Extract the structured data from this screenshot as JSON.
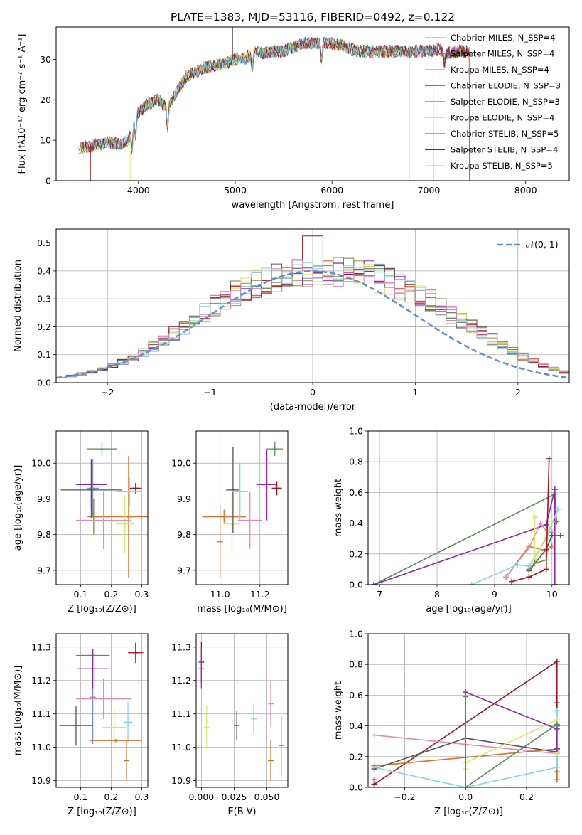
{
  "figure": {
    "title": "PLATE=1383, MJD=53116, FIBERID=0492, z=0.122"
  },
  "colors": {
    "chabrier_miles": "#7f8fc8",
    "salpeter_miles": "#8b8b3a",
    "kroupa_miles": "#d2722b",
    "chabrier_elodie": "#5a8a5a",
    "salpeter_elodie": "#8e2ab0",
    "kroupa_elodie": "#d9e86a",
    "chabrier_stelib": "#555555",
    "salpeter_stelib": "#a3151b",
    "kroupa_stelib": "#80d8e0",
    "pink": "#e58ab8",
    "normal_curve": "#5b8fd6"
  },
  "chart_data": [
    {
      "id": "spectrum",
      "type": "line",
      "title": "PLATE=1383, MJD=53116, FIBERID=0492, z=0.122",
      "xlabel": "wavelength [Angstrom, rest frame]",
      "ylabel": "Flux [fλ10⁻¹⁷ erg cm⁻² s⁻¹ A⁻¹]",
      "xlim": [
        3150,
        8450
      ],
      "ylim": [
        0,
        38
      ],
      "xticks": [
        "4000",
        "5000",
        "6000",
        "7000",
        "8000"
      ],
      "yticks": [
        "0",
        "10",
        "20",
        "30"
      ],
      "grid": false,
      "legend_position": "right",
      "series": [
        {
          "name": "Chabrier MILES, N_SSP=4",
          "color_key": "chabrier_miles"
        },
        {
          "name": "Salpeter MILES, N_SSP=4",
          "color_key": "salpeter_miles"
        },
        {
          "name": "Kroupa MILES, N_SSP=4",
          "color_key": "kroupa_miles"
        },
        {
          "name": "Chabrier ELODIE, N_SSP=3",
          "color_key": "chabrier_elodie"
        },
        {
          "name": "Salpeter ELODIE, N_SSP=3",
          "color_key": "salpeter_elodie"
        },
        {
          "name": "Kroupa ELODIE, N_SSP=4",
          "color_key": "kroupa_elodie"
        },
        {
          "name": "Chabrier STELIB, N_SSP=5",
          "color_key": "chabrier_stelib"
        },
        {
          "name": "Salpeter STELIB, N_SSP=4",
          "color_key": "salpeter_stelib"
        },
        {
          "name": "Kroupa STELIB, N_SSP=5",
          "color_key": "kroupa_stelib"
        }
      ],
      "continuum": {
        "x": [
          3380,
          3500,
          3600,
          3700,
          3800,
          3900,
          3950,
          4000,
          4100,
          4200,
          4300,
          4400,
          4500,
          4600,
          4700,
          4800,
          4900,
          5000,
          5100,
          5200,
          5300,
          5400,
          5500,
          5600,
          5700,
          5800,
          5900,
          6000,
          6100,
          6200,
          6300,
          6400,
          6500,
          6600,
          6700,
          6800,
          6900,
          7000,
          7100,
          7200,
          7300,
          7400
        ],
        "y": [
          8,
          8.5,
          9,
          9.5,
          9,
          10,
          15,
          17,
          19,
          20,
          18,
          22,
          26,
          27,
          28,
          28.5,
          29,
          30,
          30,
          32,
          31.5,
          32,
          32,
          33,
          34,
          34,
          34,
          34,
          33.5,
          32.5,
          32,
          32,
          32,
          32,
          32,
          32,
          32,
          32,
          32.5,
          31.5,
          32,
          32
        ]
      },
      "spectrum_end": {
        "kroupa_stelib": 7050,
        "kroupa_elodie": 6800,
        "salpeter_stelib": 7420
      },
      "absorption_features": [
        {
          "x": 3935,
          "depth": 6
        },
        {
          "x": 3970,
          "depth": 5
        },
        {
          "x": 4300,
          "depth": 5
        },
        {
          "x": 5175,
          "depth": 4
        },
        {
          "x": 5890,
          "depth": 4
        },
        {
          "x": 7160,
          "depth": 3
        }
      ]
    },
    {
      "id": "residual_histogram",
      "type": "histogram",
      "xlabel": "(data-model)/error",
      "ylabel": "Normed distribution",
      "xlim": [
        -2.5,
        2.5
      ],
      "ylim": [
        0,
        0.55
      ],
      "xticks": [
        "−2",
        "−1",
        "0",
        "1",
        "2"
      ],
      "yticks": [
        "0.0",
        "0.1",
        "0.2",
        "0.3",
        "0.4",
        "0.5"
      ],
      "grid": true,
      "legend_position": "upper right",
      "legend": "𝒩(0, 1)",
      "bin_width": 0.1,
      "profile": [
        0.018,
        0.024,
        0.031,
        0.039,
        0.049,
        0.061,
        0.075,
        0.091,
        0.109,
        0.13,
        0.152,
        0.176,
        0.2,
        0.226,
        0.251,
        0.276,
        0.299,
        0.32,
        0.338,
        0.353,
        0.365,
        0.375,
        0.383,
        0.39,
        0.395,
        0.398,
        0.399,
        0.397,
        0.394,
        0.39,
        0.383,
        0.373,
        0.361,
        0.347,
        0.331,
        0.313,
        0.293,
        0.271,
        0.248,
        0.225,
        0.201,
        0.178,
        0.155,
        0.133,
        0.113,
        0.094,
        0.077,
        0.062,
        0.049,
        0.038
      ]
    },
    {
      "id": "age_vs_Z",
      "type": "errorbar",
      "xlabel": "Z [log₁₀(Z/Z⊙)]",
      "ylabel": "age  [log₁₀(age/yr)]",
      "xlim": [
        0.02,
        0.32
      ],
      "ylim": [
        9.66,
        10.09
      ],
      "xticks": [
        "0.1",
        "0.2",
        "0.3"
      ],
      "yticks": [
        "9.7",
        "9.8",
        "9.9",
        "10.0"
      ],
      "grid": true,
      "points": [
        {
          "x": 0.14,
          "y": 9.93,
          "xerr": 0.02,
          "yerr": 0.08,
          "color_key": "chabrier_miles"
        },
        {
          "x": 0.143,
          "y": 9.85,
          "xerr": 0.02,
          "yerr": 0.05,
          "color_key": "salpeter_miles"
        },
        {
          "x": 0.257,
          "y": 9.85,
          "xerr": 0.11,
          "yerr": 0.17,
          "color_key": "kroupa_miles"
        },
        {
          "x": 0.17,
          "y": 10.04,
          "xerr": 0.05,
          "yerr": 0.02,
          "color_key": "chabrier_elodie"
        },
        {
          "x": 0.135,
          "y": 9.94,
          "xerr": 0.05,
          "yerr": 0.07,
          "color_key": "salpeter_elodie"
        },
        {
          "x": 0.245,
          "y": 9.83,
          "xerr": 0.03,
          "yerr": 0.08,
          "color_key": "kroupa_elodie"
        },
        {
          "x": 0.135,
          "y": 9.925,
          "xerr": 0.1,
          "yerr": 0.08,
          "color_key": "chabrier_stelib"
        },
        {
          "x": 0.28,
          "y": 9.93,
          "xerr": 0.02,
          "yerr": 0.015,
          "color_key": "salpeter_stelib"
        },
        {
          "x": 0.26,
          "y": 9.92,
          "xerr": 0.04,
          "yerr": 0.04,
          "color_key": "kroupa_stelib"
        },
        {
          "x": 0.175,
          "y": 9.84,
          "xerr": 0.09,
          "yerr": 0.08,
          "color_key": "pink"
        }
      ]
    },
    {
      "id": "age_vs_mass",
      "type": "errorbar",
      "xlabel": "mass [log₁₀(M/M⊙)]",
      "ylabel": "",
      "xlim": [
        10.88,
        11.34
      ],
      "ylim": [
        9.66,
        10.09
      ],
      "xticks": [
        "11.0",
        "11.2"
      ],
      "yticks": [
        "9.7",
        "9.8",
        "9.9",
        "10.0"
      ],
      "grid": true,
      "points": [
        {
          "x": 11.02,
          "y": 9.85,
          "xerr": 0.11,
          "yerr": 0.02,
          "color_key": "kroupa_miles"
        },
        {
          "x": 11.275,
          "y": 10.04,
          "xerr": 0.04,
          "yerr": 0.02,
          "color_key": "chabrier_elodie"
        },
        {
          "x": 11.235,
          "y": 9.94,
          "xerr": 0.05,
          "yerr": 0.1,
          "color_key": "salpeter_elodie"
        },
        {
          "x": 11.06,
          "y": 9.83,
          "xerr": 0.04,
          "yerr": 0.09,
          "color_key": "kroupa_elodie"
        },
        {
          "x": 11.065,
          "y": 9.925,
          "xerr": 0.035,
          "yerr": 0.12,
          "color_key": "chabrier_stelib"
        },
        {
          "x": 11.285,
          "y": 9.93,
          "xerr": 0.025,
          "yerr": 0.02,
          "color_key": "salpeter_stelib"
        },
        {
          "x": 11.1,
          "y": 9.92,
          "xerr": 0.04,
          "yerr": 0.08,
          "color_key": "kroupa_stelib"
        },
        {
          "x": 11.15,
          "y": 9.84,
          "xerr": 0.06,
          "yerr": 0.08,
          "color_key": "pink"
        },
        {
          "x": 11.0,
          "y": 9.78,
          "xerr": 0.0,
          "yerr": 0.1,
          "color_key": "kroupa_miles"
        }
      ]
    },
    {
      "id": "weight_vs_age",
      "type": "line",
      "xlabel": "age  [log₁₀(age/yr)]",
      "ylabel": "mass weight",
      "xlim": [
        6.8,
        10.3
      ],
      "ylim": [
        0,
        1.0
      ],
      "xticks": [
        "7",
        "8",
        "9",
        "10"
      ],
      "yticks": [
        "0.0",
        "0.2",
        "0.4",
        "0.6",
        "0.8",
        "1.0"
      ],
      "grid": true,
      "series": [
        {
          "color_key": "chabrier_elodie",
          "x": [
            6.9,
            10.05,
            10.08
          ],
          "y": [
            0.0,
            0.59,
            0.41
          ]
        },
        {
          "color_key": "salpeter_elodie",
          "x": [
            6.9,
            9.9,
            10.05,
            10.05
          ],
          "y": [
            0.0,
            0.39,
            0.62,
            0.0
          ]
        },
        {
          "color_key": "kroupa_miles",
          "x": [
            9.2,
            9.6,
            9.9,
            10.0
          ],
          "y": [
            0.05,
            0.25,
            0.22,
            0.25
          ]
        },
        {
          "color_key": "pink",
          "x": [
            9.2,
            9.6,
            9.8,
            9.9,
            10.0
          ],
          "y": [
            0.05,
            0.24,
            0.4,
            0.35,
            0.34
          ]
        },
        {
          "color_key": "kroupa_stelib",
          "x": [
            8.6,
            9.4,
            9.6,
            9.9,
            10.1
          ],
          "y": [
            0.0,
            0.13,
            0.12,
            0.3,
            0.49
          ]
        },
        {
          "color_key": "kroupa_elodie",
          "x": [
            9.7,
            9.7,
            10.0
          ],
          "y": [
            0.44,
            0.15,
            0.41
          ]
        },
        {
          "color_key": "chabrier_stelib",
          "x": [
            9.6,
            9.9,
            10.0,
            10.15
          ],
          "y": [
            0.09,
            0.23,
            0.32,
            0.32
          ]
        },
        {
          "color_key": "salpeter_stelib",
          "x": [
            9.3,
            9.6,
            9.9,
            9.95
          ],
          "y": [
            0.02,
            0.05,
            0.1,
            0.82
          ]
        },
        {
          "color_key": "salpeter_miles",
          "x": [
            9.6,
            9.7,
            9.9
          ],
          "y": [
            0.1,
            0.14,
            0.16
          ]
        }
      ]
    },
    {
      "id": "mass_vs_Z",
      "type": "errorbar",
      "xlabel": "Z [log₁₀(Z/Z⊙)]",
      "ylabel": "mass [log₁₀(M/M⊙)]",
      "xlim": [
        0.02,
        0.32
      ],
      "ylim": [
        10.88,
        11.34
      ],
      "xticks": [
        "0.1",
        "0.2",
        "0.3"
      ],
      "yticks": [
        "10.9",
        "11.0",
        "11.1",
        "11.2",
        "11.3"
      ],
      "grid": true,
      "points": [
        {
          "x": 0.14,
          "y": 11.15,
          "xerr": 0.005,
          "yerr": 0.14,
          "color_key": "chabrier_miles"
        },
        {
          "x": 0.14,
          "y": 11.275,
          "xerr": 0.055,
          "yerr": 0.02,
          "color_key": "chabrier_elodie"
        },
        {
          "x": 0.14,
          "y": 11.235,
          "xerr": 0.05,
          "yerr": 0.06,
          "color_key": "salpeter_elodie"
        },
        {
          "x": 0.28,
          "y": 11.283,
          "xerr": 0.025,
          "yerr": 0.03,
          "color_key": "salpeter_stelib"
        },
        {
          "x": 0.175,
          "y": 11.145,
          "xerr": 0.09,
          "yerr": 0.06,
          "color_key": "pink"
        },
        {
          "x": 0.255,
          "y": 11.075,
          "xerr": 0.015,
          "yerr": 0.06,
          "color_key": "kroupa_stelib"
        },
        {
          "x": 0.21,
          "y": 11.06,
          "xerr": 0.04,
          "yerr": 0.06,
          "color_key": "kroupa_elodie"
        },
        {
          "x": 0.085,
          "y": 11.065,
          "xerr": 0.055,
          "yerr": 0.06,
          "color_key": "chabrier_stelib"
        },
        {
          "x": 0.215,
          "y": 11.02,
          "xerr": 0.085,
          "yerr": 0.005,
          "color_key": "kroupa_miles"
        },
        {
          "x": 0.25,
          "y": 10.96,
          "xerr": 0.0,
          "yerr": 0.06,
          "color_key": "kroupa_miles"
        }
      ]
    },
    {
      "id": "mass_vs_ebv",
      "type": "errorbar",
      "xlabel": "E(B-V)",
      "ylabel": "",
      "xlim": [
        -0.004,
        0.066
      ],
      "ylim": [
        10.88,
        11.34
      ],
      "xticks": [
        "0.000",
        "0.025",
        "0.050"
      ],
      "yticks": [
        "10.9",
        "11.0",
        "11.1",
        "11.2",
        "11.3"
      ],
      "grid": true,
      "points": [
        {
          "x": 0.0,
          "y": 11.255,
          "xerr": 0.0,
          "yerr": 0.06,
          "color_key": "salpeter_stelib"
        },
        {
          "x": 0.0,
          "y": 11.235,
          "xerr": 0.0,
          "yerr": 0.06,
          "color_key": "salpeter_elodie"
        },
        {
          "x": 0.004,
          "y": 11.06,
          "xerr": 0.0,
          "yerr": 0.065,
          "color_key": "kroupa_elodie"
        },
        {
          "x": 0.027,
          "y": 11.065,
          "xerr": 0.0,
          "yerr": 0.045,
          "color_key": "chabrier_stelib"
        },
        {
          "x": 0.04,
          "y": 11.085,
          "xerr": 0.0,
          "yerr": 0.045,
          "color_key": "kroupa_stelib"
        },
        {
          "x": 0.053,
          "y": 11.13,
          "xerr": 0.0,
          "yerr": 0.07,
          "color_key": "pink"
        },
        {
          "x": 0.053,
          "y": 10.96,
          "xerr": 0.0,
          "yerr": 0.06,
          "color_key": "kroupa_miles"
        },
        {
          "x": 0.061,
          "y": 11.005,
          "xerr": 0.0,
          "yerr": 0.09,
          "color_key": "chabrier_miles"
        }
      ]
    },
    {
      "id": "weight_vs_Z",
      "type": "line",
      "xlabel": "Z [log₁₀(Z/Z⊙)]",
      "ylabel": "mass weight",
      "xlim": [
        -0.32,
        0.34
      ],
      "ylim": [
        0,
        1.0
      ],
      "xticks": [
        "−0.2",
        "0.0",
        "0.2"
      ],
      "yticks": [
        "0.0",
        "0.2",
        "0.4",
        "0.6",
        "0.8",
        "1.0"
      ],
      "grid": true,
      "series": [
        {
          "color_key": "salpeter_stelib",
          "x": [
            -0.3,
            -0.3,
            -0.3,
            0.3,
            0.3,
            0.3,
            0.3
          ],
          "y": [
            0.02,
            0.05,
            0.02,
            0.82,
            0.55,
            0.1,
            0.05
          ]
        },
        {
          "color_key": "pink",
          "x": [
            -0.3,
            0.3,
            0.3
          ],
          "y": [
            0.34,
            0.22,
            0.25
          ]
        },
        {
          "color_key": "kroupa_miles",
          "x": [
            -0.3,
            0.3,
            0.3
          ],
          "y": [
            0.14,
            0.25,
            0.05
          ]
        },
        {
          "color_key": "chabrier_stelib",
          "x": [
            -0.3,
            0.0,
            0.3,
            0.3
          ],
          "y": [
            0.12,
            0.32,
            0.23,
            0.4
          ]
        },
        {
          "color_key": "kroupa_stelib",
          "x": [
            -0.3,
            0.0,
            0.3,
            0.3
          ],
          "y": [
            0.13,
            0.0,
            0.13,
            0.5
          ]
        },
        {
          "color_key": "kroupa_elodie",
          "x": [
            0.0,
            0.0,
            0.3,
            0.3
          ],
          "y": [
            0.12,
            0.16,
            0.44,
            0.22
          ]
        },
        {
          "color_key": "salpeter_elodie",
          "x": [
            0.0,
            0.0,
            0.3,
            0.3
          ],
          "y": [
            0.0,
            0.62,
            0.38,
            0.25
          ]
        },
        {
          "color_key": "chabrier_elodie",
          "x": [
            0.0,
            0.0,
            0.3
          ],
          "y": [
            0.59,
            0.0,
            0.41
          ]
        }
      ]
    }
  ]
}
